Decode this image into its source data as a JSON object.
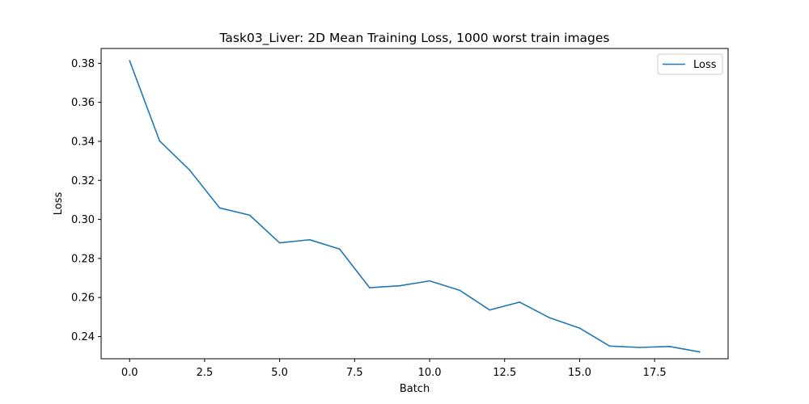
{
  "chart_data": {
    "type": "line",
    "title": "Task03_Liver: 2D Mean Training Loss, 1000 worst train images",
    "xlabel": "Batch",
    "ylabel": "Loss",
    "xlim": [
      -0.95,
      19.95
    ],
    "ylim": [
      0.2286,
      0.3876
    ],
    "xticks": [
      0.0,
      2.5,
      5.0,
      7.5,
      10.0,
      12.5,
      15.0,
      17.5
    ],
    "xtick_labels": [
      "0.0",
      "2.5",
      "5.0",
      "7.5",
      "10.0",
      "12.5",
      "15.0",
      "17.5"
    ],
    "yticks": [
      0.24,
      0.26,
      0.28,
      0.3,
      0.32,
      0.34,
      0.36,
      0.38
    ],
    "ytick_labels": [
      "0.24",
      "0.26",
      "0.28",
      "0.30",
      "0.32",
      "0.34",
      "0.36",
      "0.38"
    ],
    "grid": false,
    "legend_position": "top-right",
    "series": [
      {
        "name": "Loss",
        "color": "#1f77b4",
        "x": [
          0,
          1,
          2,
          3,
          4,
          5,
          6,
          7,
          8,
          9,
          10,
          11,
          12,
          13,
          14,
          15,
          16,
          17,
          18,
          19
        ],
        "values": [
          0.3813,
          0.3402,
          0.3253,
          0.3059,
          0.3022,
          0.288,
          0.2896,
          0.2848,
          0.265,
          0.266,
          0.2685,
          0.2637,
          0.2536,
          0.2576,
          0.2496,
          0.2443,
          0.2351,
          0.2344,
          0.2349,
          0.2321
        ]
      }
    ]
  }
}
